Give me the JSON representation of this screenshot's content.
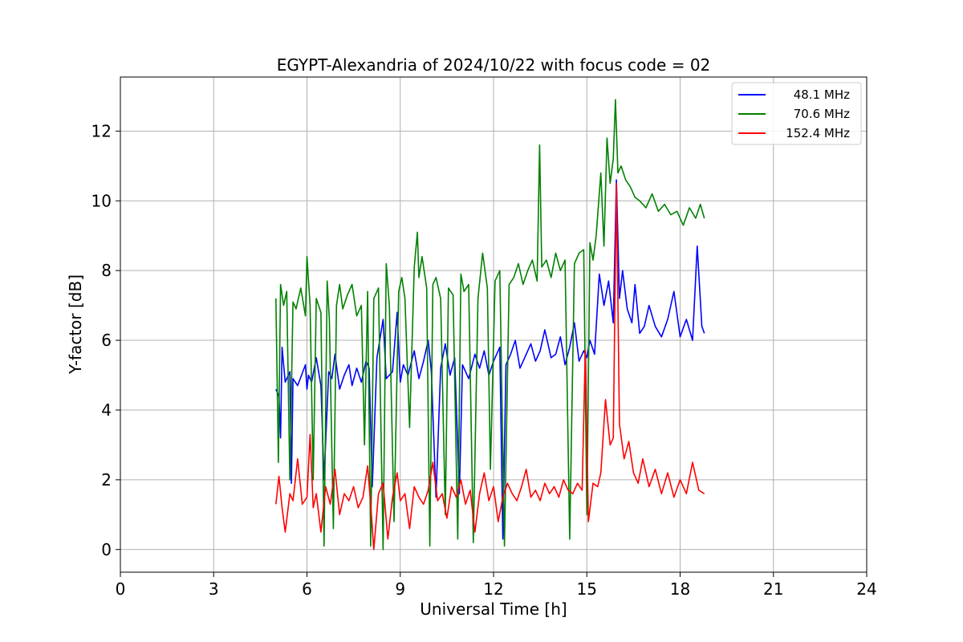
{
  "chart_data": {
    "type": "line",
    "title": "EGYPT-Alexandria of 2024/10/22 with focus code = 02",
    "xlabel": "Universal Time [h]",
    "ylabel": "Y-factor [dB]",
    "xlim": [
      0,
      24
    ],
    "ylim": [
      -0.65,
      13.55
    ],
    "xticks": [
      0,
      3,
      6,
      9,
      12,
      15,
      18,
      21,
      24
    ],
    "xtick_labels": [
      "0",
      "3",
      "6",
      "9",
      "12",
      "15",
      "18",
      "21",
      "24"
    ],
    "yticks": [
      0,
      2,
      4,
      6,
      8,
      10,
      12
    ],
    "ytick_labels": [
      "0",
      "2",
      "4",
      "6",
      "8",
      "10",
      "12"
    ],
    "grid": true,
    "legend_position": "top-right",
    "series": [
      {
        "name": "48.1 MHz",
        "color": "#0000ff",
        "x": [
          5.0,
          5.1,
          5.15,
          5.2,
          5.3,
          5.45,
          5.5,
          5.55,
          5.7,
          5.95,
          6.0,
          6.05,
          6.15,
          6.3,
          6.45,
          6.55,
          6.7,
          6.8,
          6.9,
          7.05,
          7.2,
          7.35,
          7.45,
          7.6,
          7.75,
          7.9,
          8.0,
          8.1,
          8.25,
          8.45,
          8.55,
          8.75,
          8.9,
          9.0,
          9.1,
          9.25,
          9.45,
          9.6,
          9.75,
          9.9,
          10.0,
          10.15,
          10.3,
          10.45,
          10.6,
          10.75,
          10.9,
          11.0,
          11.2,
          11.4,
          11.55,
          11.7,
          11.85,
          12.0,
          12.2,
          12.3,
          12.4,
          12.55,
          12.7,
          12.85,
          13.0,
          13.2,
          13.35,
          13.5,
          13.65,
          13.85,
          14.0,
          14.15,
          14.3,
          14.45,
          14.6,
          14.75,
          14.9,
          15.0,
          15.1,
          15.25,
          15.4,
          15.55,
          15.7,
          15.85,
          15.95,
          16.05,
          16.15,
          16.3,
          16.45,
          16.55,
          16.7,
          16.85,
          17.0,
          17.2,
          17.4,
          17.6,
          17.8,
          18.0,
          18.2,
          18.4,
          18.55,
          18.7,
          18.78
        ],
        "values": [
          4.6,
          4.4,
          3.2,
          5.8,
          4.8,
          5.1,
          1.9,
          4.9,
          4.7,
          5.3,
          4.6,
          5.0,
          4.8,
          5.5,
          4.7,
          2.0,
          5.1,
          4.9,
          5.6,
          4.6,
          5.0,
          5.3,
          4.7,
          5.2,
          4.8,
          5.4,
          5.2,
          1.8,
          5.5,
          6.6,
          4.9,
          5.1,
          6.8,
          4.8,
          5.3,
          5.0,
          5.7,
          4.9,
          5.4,
          6.0,
          5.1,
          1.5,
          5.2,
          5.9,
          5.0,
          5.5,
          1.6,
          5.3,
          4.9,
          5.6,
          5.2,
          5.7,
          5.0,
          5.4,
          5.8,
          0.3,
          5.3,
          5.6,
          6.0,
          5.2,
          5.5,
          5.9,
          5.4,
          5.7,
          6.3,
          5.5,
          5.6,
          6.1,
          5.3,
          5.8,
          6.5,
          5.4,
          5.7,
          5.5,
          6.0,
          5.6,
          7.9,
          7.0,
          7.7,
          6.5,
          10.6,
          7.2,
          8.0,
          6.9,
          6.5,
          7.6,
          6.2,
          6.4,
          7.0,
          6.4,
          6.1,
          6.6,
          7.4,
          6.1,
          6.6,
          6.0,
          8.7,
          6.4,
          6.2
        ]
      },
      {
        "name": "70.6 MHz",
        "color": "#008000",
        "x": [
          5.0,
          5.08,
          5.15,
          5.25,
          5.35,
          5.45,
          5.55,
          5.65,
          5.8,
          5.95,
          6.0,
          6.1,
          6.2,
          6.3,
          6.45,
          6.55,
          6.65,
          6.72,
          6.85,
          6.95,
          7.05,
          7.15,
          7.3,
          7.45,
          7.6,
          7.75,
          7.85,
          7.95,
          8.05,
          8.15,
          8.3,
          8.45,
          8.55,
          8.65,
          8.8,
          8.95,
          9.05,
          9.15,
          9.3,
          9.45,
          9.55,
          9.6,
          9.7,
          9.85,
          9.95,
          10.05,
          10.15,
          10.3,
          10.45,
          10.55,
          10.7,
          10.85,
          10.95,
          11.05,
          11.2,
          11.35,
          11.5,
          11.65,
          11.8,
          11.9,
          12.05,
          12.2,
          12.35,
          12.5,
          12.65,
          12.8,
          12.95,
          13.1,
          13.25,
          13.4,
          13.48,
          13.55,
          13.7,
          13.85,
          14.0,
          14.15,
          14.3,
          14.45,
          14.6,
          14.75,
          14.9,
          15.0,
          15.1,
          15.2,
          15.3,
          15.45,
          15.55,
          15.65,
          15.75,
          15.85,
          15.92,
          16.0,
          16.1,
          16.25,
          16.4,
          16.55,
          16.7,
          16.9,
          17.1,
          17.3,
          17.5,
          17.7,
          17.9,
          18.1,
          18.3,
          18.5,
          18.65,
          18.78
        ],
        "values": [
          7.2,
          2.5,
          7.6,
          7.0,
          7.4,
          2.0,
          7.1,
          6.9,
          7.5,
          6.7,
          8.4,
          7.0,
          2.0,
          7.2,
          6.8,
          0.1,
          7.7,
          6.6,
          0.6,
          7.0,
          7.6,
          6.9,
          7.3,
          7.6,
          6.7,
          7.0,
          3.0,
          7.4,
          0.1,
          7.2,
          7.5,
          0.0,
          8.2,
          7.0,
          0.8,
          7.4,
          7.8,
          7.2,
          3.5,
          8.1,
          9.1,
          7.8,
          8.4,
          7.5,
          0.1,
          7.6,
          7.8,
          7.2,
          1.0,
          7.5,
          7.3,
          0.3,
          7.9,
          7.4,
          7.6,
          0.2,
          7.2,
          8.5,
          7.5,
          2.3,
          7.7,
          8.0,
          0.1,
          7.6,
          7.8,
          8.2,
          7.6,
          8.0,
          8.3,
          7.7,
          11.6,
          8.1,
          8.3,
          7.8,
          8.5,
          8.0,
          8.3,
          0.3,
          8.2,
          8.5,
          8.6,
          1.0,
          8.8,
          8.3,
          9.0,
          10.8,
          8.7,
          11.8,
          10.5,
          11.2,
          12.9,
          10.8,
          11.0,
          10.6,
          10.4,
          10.1,
          10.0,
          9.8,
          10.2,
          9.7,
          9.9,
          9.6,
          9.7,
          9.3,
          9.8,
          9.5,
          9.9,
          9.5
        ]
      },
      {
        "name": "152.4 MHz",
        "color": "#ff0000",
        "x": [
          5.0,
          5.1,
          5.2,
          5.3,
          5.45,
          5.55,
          5.7,
          5.85,
          6.0,
          6.1,
          6.2,
          6.3,
          6.45,
          6.6,
          6.75,
          6.9,
          7.05,
          7.2,
          7.35,
          7.5,
          7.65,
          7.8,
          7.95,
          8.05,
          8.15,
          8.3,
          8.45,
          8.6,
          8.75,
          8.9,
          9.0,
          9.15,
          9.3,
          9.45,
          9.6,
          9.75,
          9.9,
          10.05,
          10.2,
          10.35,
          10.5,
          10.65,
          10.8,
          10.95,
          11.1,
          11.25,
          11.4,
          11.55,
          11.7,
          11.85,
          12.0,
          12.15,
          12.3,
          12.45,
          12.6,
          12.75,
          12.9,
          13.05,
          13.2,
          13.35,
          13.5,
          13.65,
          13.8,
          13.95,
          14.1,
          14.25,
          14.4,
          14.55,
          14.7,
          14.85,
          14.95,
          15.05,
          15.2,
          15.35,
          15.45,
          15.6,
          15.75,
          15.85,
          15.95,
          16.05,
          16.2,
          16.35,
          16.5,
          16.65,
          16.8,
          17.0,
          17.2,
          17.4,
          17.6,
          17.8,
          18.0,
          18.2,
          18.4,
          18.6,
          18.78
        ],
        "values": [
          1.3,
          2.1,
          1.2,
          0.5,
          1.6,
          1.4,
          2.6,
          1.3,
          1.5,
          3.3,
          1.2,
          1.6,
          0.5,
          1.8,
          1.3,
          2.3,
          1.0,
          1.6,
          1.4,
          1.8,
          1.2,
          1.5,
          2.4,
          1.3,
          0.0,
          1.6,
          1.9,
          0.3,
          1.5,
          2.2,
          1.4,
          1.6,
          0.6,
          1.8,
          1.5,
          1.3,
          1.7,
          2.5,
          1.4,
          1.6,
          0.9,
          1.8,
          1.5,
          2.0,
          1.3,
          1.7,
          0.5,
          1.6,
          2.2,
          1.4,
          1.8,
          0.8,
          1.5,
          1.9,
          1.6,
          1.4,
          1.8,
          2.3,
          1.5,
          1.7,
          1.4,
          1.9,
          1.6,
          1.8,
          1.5,
          2.0,
          1.7,
          1.6,
          1.9,
          1.7,
          5.7,
          0.8,
          1.9,
          1.8,
          2.2,
          4.3,
          3.0,
          3.2,
          10.5,
          3.6,
          2.6,
          3.1,
          2.2,
          1.9,
          2.6,
          1.8,
          2.3,
          1.6,
          2.2,
          1.5,
          2.0,
          1.6,
          2.5,
          1.7,
          1.6
        ]
      }
    ]
  }
}
